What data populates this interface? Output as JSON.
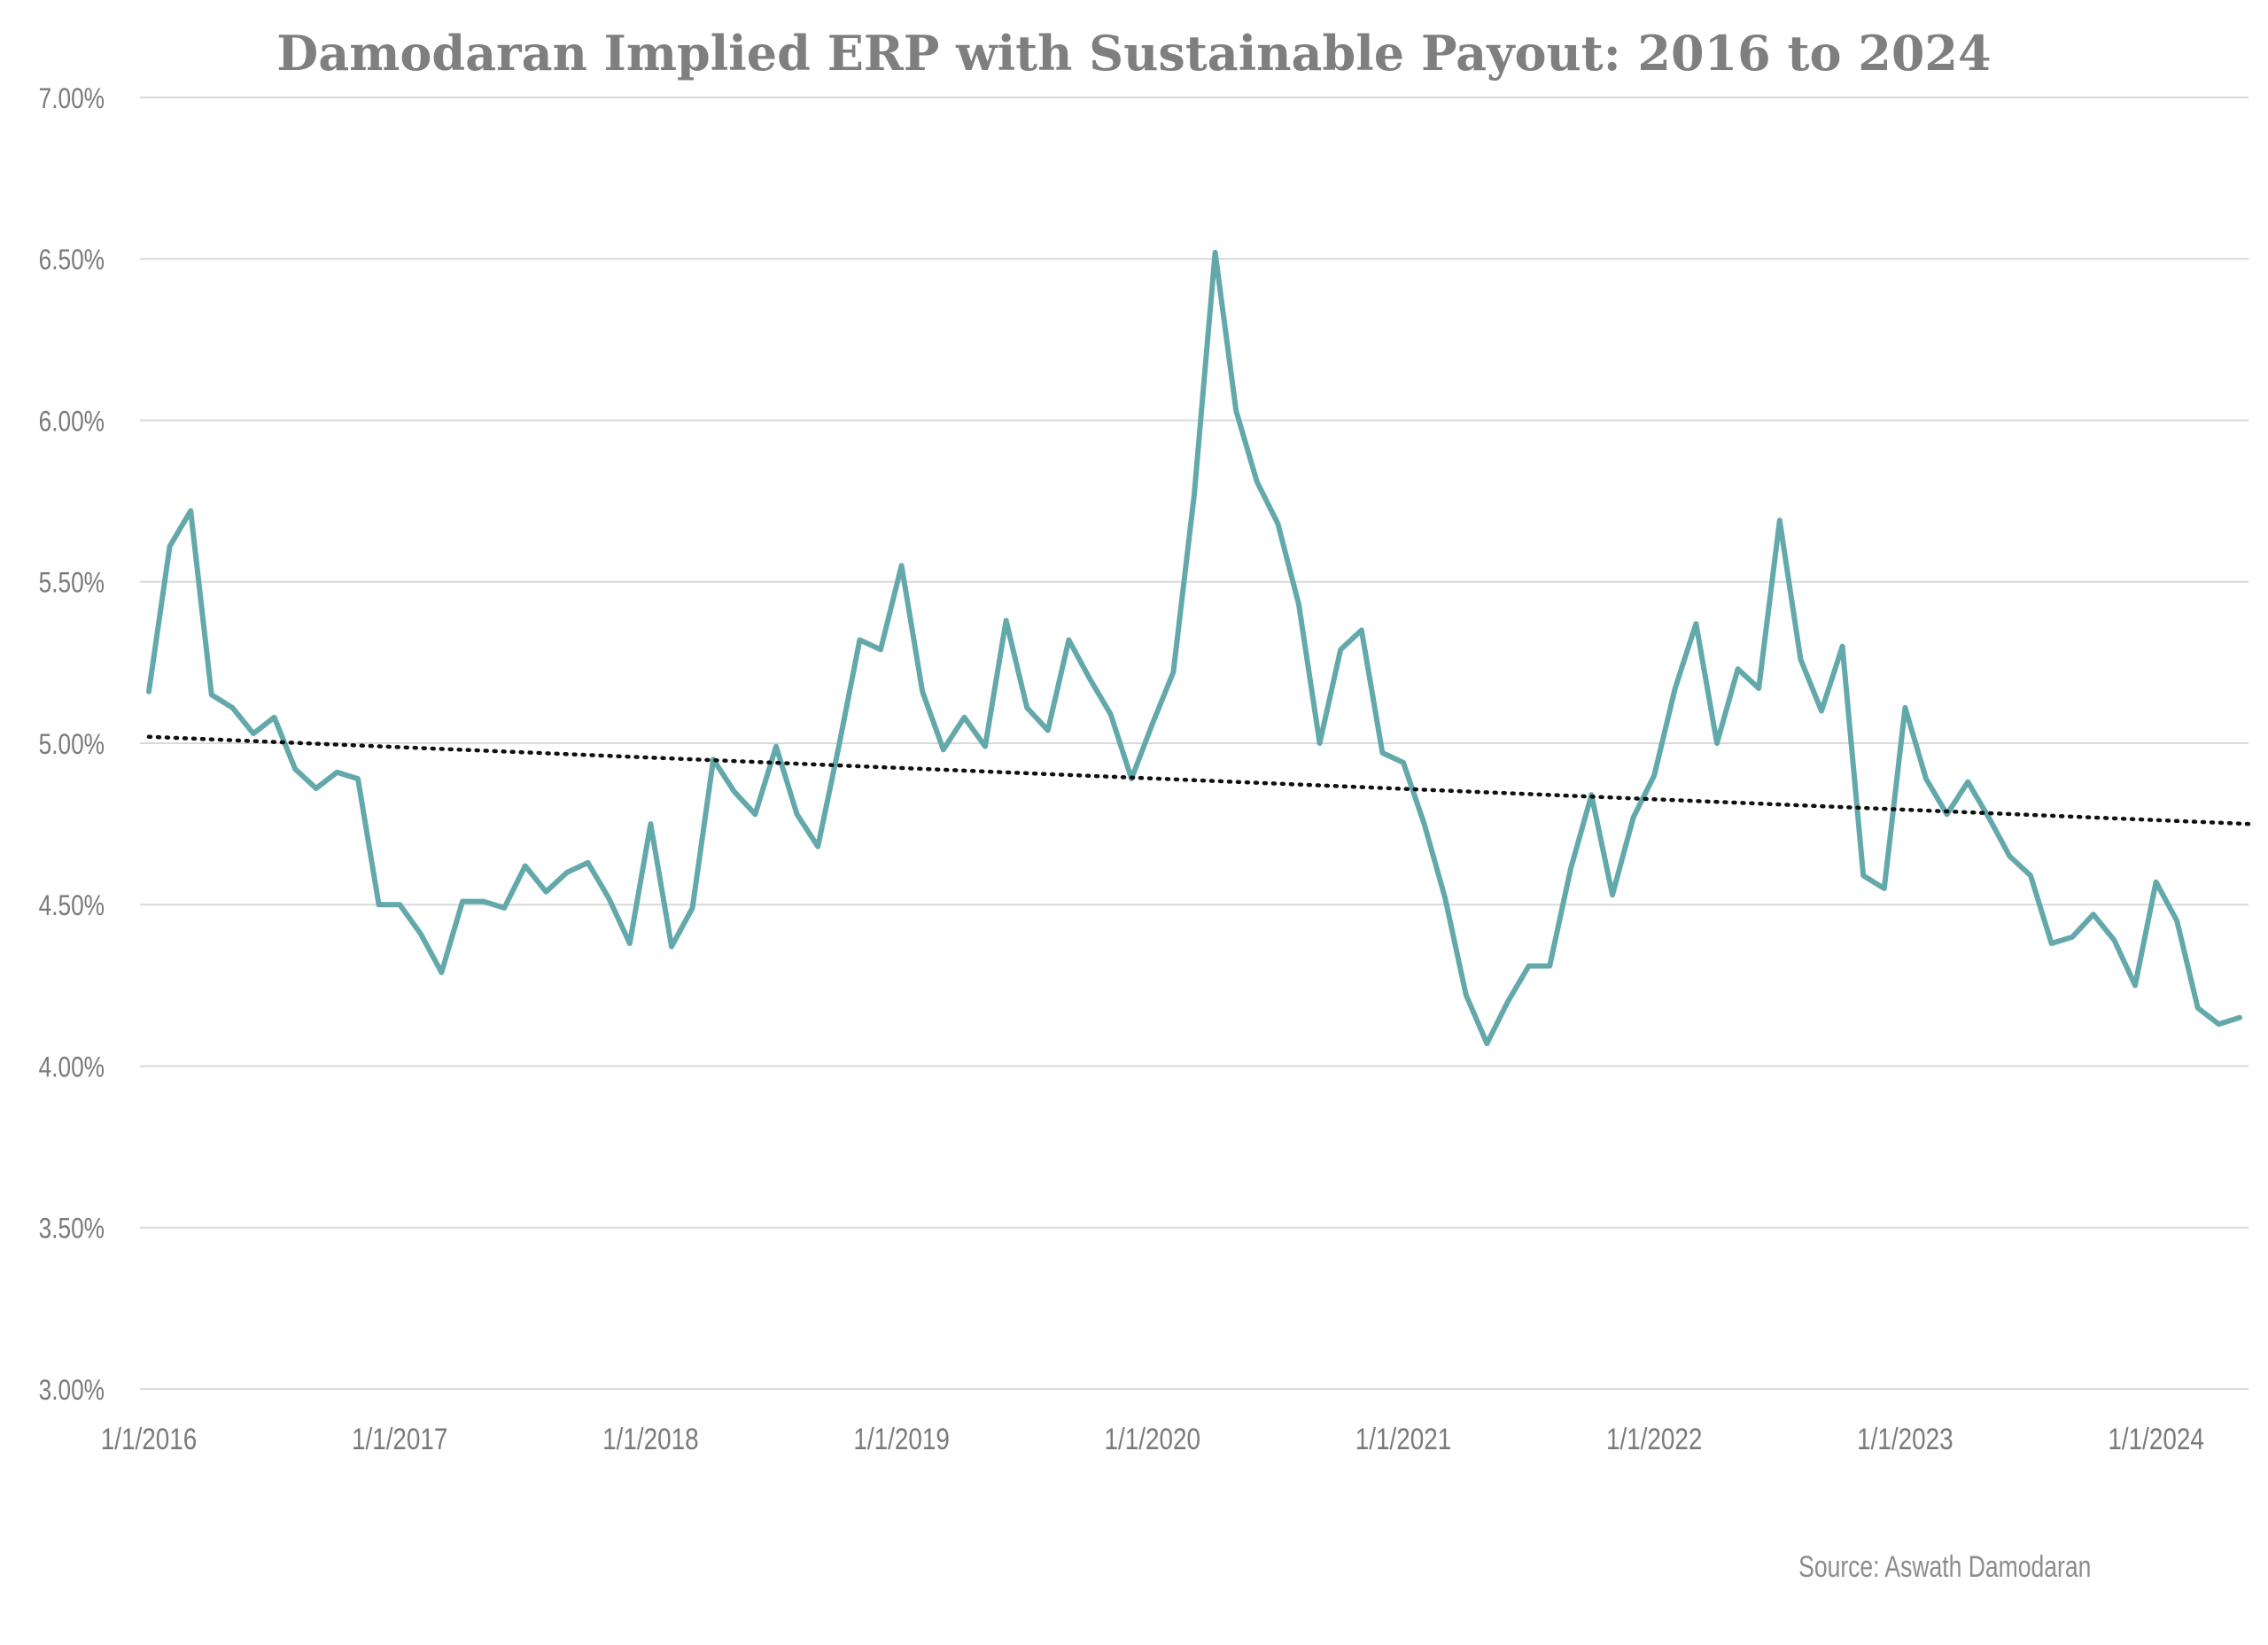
{
  "chart_data": {
    "type": "line",
    "title": "Damodaran Implied ERP with Sustainable Payout: 2016 to 2024",
    "source": "Source: Aswath Damodaran",
    "xlabel": "",
    "ylabel": "",
    "ylim": [
      3.0,
      7.0
    ],
    "y_ticks": [
      "3.00%",
      "3.50%",
      "4.00%",
      "4.50%",
      "5.00%",
      "5.50%",
      "6.00%",
      "6.50%",
      "7.00%"
    ],
    "x_ticks": [
      "1/1/2016",
      "1/1/2017",
      "1/1/2018",
      "1/1/2019",
      "1/1/2020",
      "1/1/2021",
      "1/1/2022",
      "1/1/2023",
      "1/1/2024"
    ],
    "grid": true,
    "legend": "none",
    "series": [
      {
        "name": "Implied ERP (sustainable payout)",
        "color": "#63a9ab",
        "start": "2016-01",
        "frequency": "monthly",
        "values": [
          5.16,
          5.61,
          5.72,
          5.15,
          5.11,
          5.03,
          5.08,
          4.92,
          4.86,
          4.91,
          4.89,
          4.5,
          4.5,
          4.41,
          4.29,
          4.51,
          4.51,
          4.49,
          4.62,
          4.54,
          4.6,
          4.63,
          4.52,
          4.38,
          4.75,
          4.37,
          4.49,
          4.95,
          4.85,
          4.78,
          4.99,
          4.78,
          4.68,
          4.99,
          5.32,
          5.29,
          5.55,
          5.16,
          4.98,
          5.08,
          4.99,
          5.38,
          5.11,
          5.04,
          5.32,
          5.2,
          5.09,
          4.89,
          5.06,
          5.22,
          5.77,
          6.52,
          6.03,
          5.81,
          5.68,
          5.43,
          5.0,
          5.29,
          5.35,
          4.97,
          4.94,
          4.75,
          4.52,
          4.22,
          4.07,
          4.2,
          4.31,
          4.31,
          4.61,
          4.84,
          4.53,
          4.77,
          4.9,
          5.17,
          5.37,
          5.0,
          5.23,
          5.17,
          5.69,
          5.26,
          5.1,
          5.3,
          4.59,
          4.55,
          5.11,
          4.89,
          4.78,
          4.88,
          4.77,
          4.65,
          4.59,
          4.38,
          4.4,
          4.47,
          4.39,
          4.25,
          4.57,
          4.45,
          4.18,
          4.13,
          4.15
        ]
      }
    ],
    "trendline": {
      "name": "Linear trend",
      "color": "#111111",
      "start_value": 5.02,
      "end_value": 4.75
    }
  }
}
